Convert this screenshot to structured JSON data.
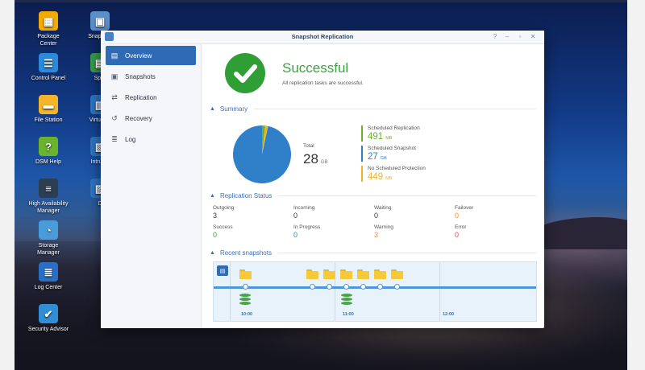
{
  "desktop": {
    "icons": [
      {
        "label": "Package\nCenter",
        "glyph": "▦",
        "color": "#f2a900",
        "icon": "package-center-icon"
      },
      {
        "label": "Control Panel",
        "glyph": "☰",
        "color": "#2b8ad9",
        "icon": "control-panel-icon"
      },
      {
        "label": "File Station",
        "glyph": "▬",
        "color": "#f5b52a",
        "icon": "folder-icon"
      },
      {
        "label": "DSM Help",
        "glyph": "?",
        "color": "#6ab42d",
        "icon": "help-icon"
      },
      {
        "label": "High Availability\nManager",
        "glyph": "≡",
        "color": "#2d3d52",
        "icon": "server-icon"
      },
      {
        "label": "Storage\nManager",
        "glyph": "◔",
        "color": "#4a9bd9",
        "icon": "storage-icon"
      },
      {
        "label": "Log Center",
        "glyph": "≣",
        "color": "#2b6fc4",
        "icon": "log-center-icon"
      },
      {
        "label": "Security Advisor",
        "glyph": "✔",
        "color": "#2f8ed6",
        "icon": "security-icon"
      }
    ],
    "icons_col2": [
      {
        "label": "Snapshot",
        "glyph": "▣",
        "color": "#5b8fc9",
        "icon": "snapshot-app-icon"
      },
      {
        "label": "Spre",
        "glyph": "▤",
        "color": "#3a9a4b",
        "icon": "app-icon"
      },
      {
        "label": "Virtual D",
        "glyph": "▥",
        "color": "#2f74c0",
        "icon": "app-icon"
      },
      {
        "label": "Intrusio",
        "glyph": "▧",
        "color": "#2f74c0",
        "icon": "app-icon"
      },
      {
        "label": "D",
        "glyph": "▨",
        "color": "#2f74c0",
        "icon": "app-icon"
      }
    ]
  },
  "window": {
    "title": "Snapshot Replication",
    "controls": [
      "?",
      "–",
      "▫",
      "✕"
    ]
  },
  "sidebar": {
    "items": [
      {
        "label": "Overview",
        "glyph": "▤",
        "icon": "overview-icon",
        "active": true
      },
      {
        "label": "Snapshots",
        "glyph": "▣",
        "icon": "camera-icon",
        "active": false
      },
      {
        "label": "Replication",
        "glyph": "⇄",
        "icon": "replication-icon",
        "active": false
      },
      {
        "label": "Recovery",
        "glyph": "↺",
        "icon": "recovery-icon",
        "active": false
      },
      {
        "label": "Log",
        "glyph": "≣",
        "icon": "log-icon",
        "active": false
      }
    ]
  },
  "status": {
    "title": "Successful",
    "subtitle": "All replication tasks are successful."
  },
  "summary": {
    "heading": "Summary",
    "total_label": "Total",
    "total_value": "28",
    "total_unit": "GB",
    "legend": [
      {
        "label": "Scheduled Replication",
        "value": "491",
        "unit": "MB",
        "color": "#6ab42d"
      },
      {
        "label": "Scheduled Snapshot",
        "value": "27",
        "unit": "GB",
        "color": "#2f80c9"
      },
      {
        "label": "No Scheduled Protection",
        "value": "449",
        "unit": "MB",
        "color": "#f0b32a"
      }
    ]
  },
  "chart_data": {
    "type": "pie",
    "categories": [
      "Scheduled Replication",
      "Scheduled Snapshot",
      "No Scheduled Protection"
    ],
    "values": [
      0.491,
      27,
      0.449
    ],
    "units": [
      "MB",
      "GB",
      "MB"
    ],
    "colors": [
      "#6ab42d",
      "#2f80c9",
      "#f0b32a"
    ]
  },
  "replication_status": {
    "heading": "Replication Status",
    "cells": [
      {
        "label": "Outgoing",
        "value": "3",
        "color": "#333333"
      },
      {
        "label": "Incoming",
        "value": "0",
        "color": "#333333"
      },
      {
        "label": "Waiting",
        "value": "0",
        "color": "#333333"
      },
      {
        "label": "Failover",
        "value": "0",
        "color": "#f28b2a"
      },
      {
        "label": "Success",
        "value": "0",
        "color": "#3aa23f"
      },
      {
        "label": "In Progress",
        "value": "0",
        "color": "#2f80c9"
      },
      {
        "label": "Warning",
        "value": "3",
        "color": "#f28b2a"
      },
      {
        "label": "Error",
        "value": "0",
        "color": "#e04848"
      }
    ]
  },
  "recent_snapshots": {
    "heading": "Recent snapshots",
    "times": [
      "10:00",
      "11:00",
      "12:00"
    ]
  }
}
